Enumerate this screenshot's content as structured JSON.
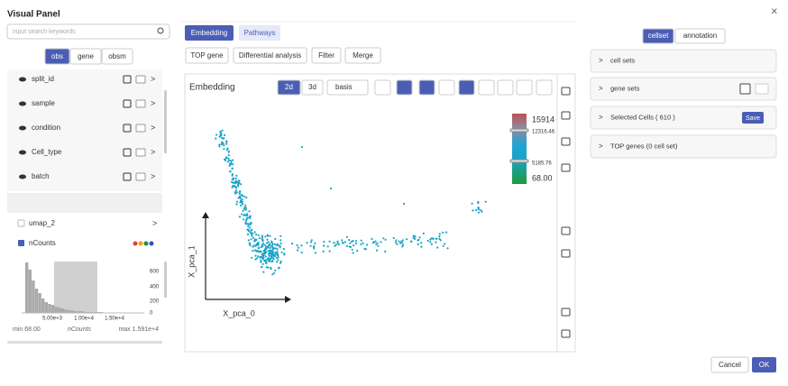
{
  "header": {
    "title": "Visual Panel",
    "search_placeholder": "input search keywords"
  },
  "left_tabs": [
    "obs",
    "gene",
    "obsm"
  ],
  "obs_items": [
    "split_id",
    "sample",
    "condition",
    "Cell_type",
    "batch"
  ],
  "obsm_items": [
    "umap_2",
    "nCounts"
  ],
  "histogram": {
    "yticks": [
      "600",
      "400",
      "200",
      "0"
    ],
    "xticks": [
      "5.00e+3",
      "1.00e+4",
      "1.50e+4"
    ],
    "min_label": "min 68.00",
    "axis_label": "nCounts",
    "max_label": "max 1.591e+4"
  },
  "main_tabs": [
    "Embedding",
    "Pathways"
  ],
  "actions": [
    "TOP gene",
    "Differential analysis",
    "Filter",
    "Merge"
  ],
  "embedding": {
    "title": "Embedding",
    "dims": [
      "2d",
      "3d"
    ],
    "basis": "basis",
    "x_label": "X_pca_0",
    "y_label": "X_pca_1",
    "colorbar": [
      "15914",
      "12316.46",
      "5185.76",
      "68.00"
    ]
  },
  "right_tabs": [
    "cellset",
    "annotation"
  ],
  "sections": [
    "cell sets",
    "gene sets",
    "Selected Cells ( 610 )",
    "TOP genes (0 cell set)"
  ],
  "save": "Save",
  "footer": {
    "cancel": "Cancel",
    "ok": "OK"
  }
}
